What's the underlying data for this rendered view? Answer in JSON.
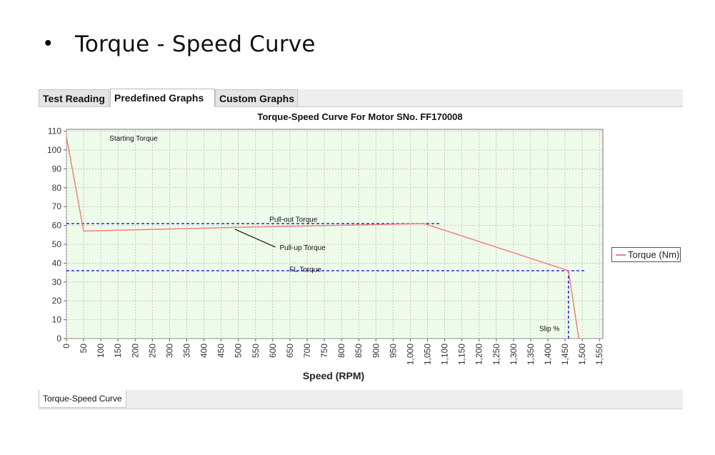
{
  "slide": {
    "bullet": "•",
    "title": "Torque - Speed Curve"
  },
  "tabs": [
    {
      "label": "Test Reading",
      "active": false
    },
    {
      "label": "Predefined Graphs",
      "active": true
    },
    {
      "label": "Custom Graphs",
      "active": false
    }
  ],
  "bottom_tab": {
    "label": "Torque-Speed Curve"
  },
  "colors": {
    "plot_bg": "#eefbea",
    "grid": "#b8b8b8",
    "series": "#f08080",
    "reference": "#0000dd"
  },
  "chart_data": {
    "type": "line",
    "title": "Torque-Speed Curve For Motor SNo. FF170008",
    "xlabel": "Speed (RPM)",
    "ylabel": "",
    "xlim": [
      0,
      1560
    ],
    "ylim": [
      0,
      111
    ],
    "xticks": [
      0,
      50,
      100,
      150,
      200,
      250,
      300,
      350,
      400,
      450,
      500,
      550,
      600,
      650,
      700,
      750,
      800,
      850,
      900,
      950,
      1000,
      1050,
      1100,
      1150,
      1200,
      1250,
      1300,
      1350,
      1400,
      1450,
      1500,
      1550
    ],
    "xtick_labels": [
      "0",
      "50",
      "100",
      "150",
      "200",
      "250",
      "300",
      "350",
      "400",
      "450",
      "500",
      "550",
      "600",
      "650",
      "700",
      "750",
      "800",
      "850",
      "900",
      "950",
      "1,000",
      "1,050",
      "1,100",
      "1,150",
      "1,200",
      "1,250",
      "1,300",
      "1,350",
      "1,400",
      "1,450",
      "1,500",
      "1,550"
    ],
    "yticks": [
      0,
      10,
      20,
      30,
      40,
      50,
      60,
      70,
      80,
      90,
      100,
      110
    ],
    "ytick_labels": [
      "0",
      "10",
      "20",
      "30",
      "40",
      "50",
      "60",
      "70",
      "80",
      "90",
      "100",
      "110"
    ],
    "grid": true,
    "legend": {
      "position": "right",
      "entries": [
        "Torque (Nm)"
      ]
    },
    "series": [
      {
        "name": "Torque (Nm)",
        "x": [
          0,
          50,
          500,
          1040,
          1460,
          1490
        ],
        "y": [
          107,
          57,
          59,
          61,
          36,
          0
        ]
      }
    ],
    "reference_lines": {
      "pullout_torque": {
        "y": 61,
        "x_range": [
          0,
          1090
        ]
      },
      "fl_torque": {
        "y": 36,
        "x_range": [
          0,
          1510
        ]
      },
      "slip": {
        "x": 1460,
        "y_range": [
          0,
          36
        ]
      }
    },
    "annotations": {
      "starting_torque": {
        "text": "Starting Torque",
        "x": 125,
        "y": 105
      },
      "pullout_torque": {
        "text": "Pull-out Torque",
        "x": 660,
        "y": 62
      },
      "pullup_torque": {
        "text": "Pull-up Torque",
        "x": 620,
        "y": 47,
        "arrow_to": [
          490,
          58
        ]
      },
      "fl_torque": {
        "text": "FL Torque",
        "x": 695,
        "y": 35.5
      },
      "slip": {
        "text": "Slip %",
        "x": 1375,
        "y": 4
      }
    }
  }
}
